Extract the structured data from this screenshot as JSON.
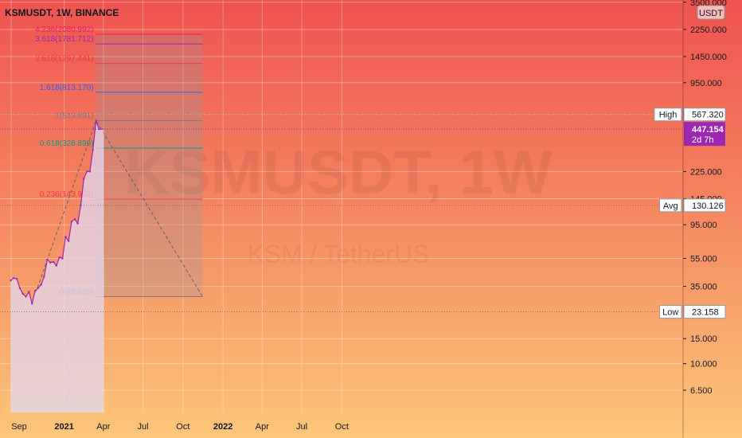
{
  "chart_data": {
    "type": "line",
    "title": "KSMUSDT, 1W, BINANCE",
    "watermark": {
      "symbol": "KSMUSDT, 1W",
      "description": "KSM / TetherUS"
    },
    "currency_badge": "USDT",
    "scale": "log",
    "ylim": [
      5.6,
      4200
    ],
    "x_ticks": [
      "Sep",
      "2021",
      "Apr",
      "Jul",
      "Oct",
      "2022",
      "Apr",
      "Jul",
      "Oct"
    ],
    "y_ticks": [
      "3500.000",
      "2250.000",
      "1450.000",
      "950.000",
      "567.320",
      "225.000",
      "145.000",
      "95.000",
      "55.000",
      "35.000",
      "15.000",
      "10.000",
      "6.500"
    ],
    "series": [
      {
        "x": [
          "2020-08-31",
          "2020-09-07",
          "2020-09-14",
          "2020-09-21",
          "2020-09-28",
          "2020-10-05",
          "2020-10-12",
          "2020-10-19",
          "2020-10-26",
          "2020-11-02",
          "2020-11-09",
          "2020-11-16",
          "2020-11-23",
          "2020-11-30",
          "2020-12-07",
          "2020-12-14",
          "2020-12-21",
          "2020-12-28",
          "2021-01-04",
          "2021-01-11",
          "2021-01-18",
          "2021-01-25",
          "2021-02-01",
          "2021-02-08",
          "2021-02-15",
          "2021-02-22",
          "2021-03-01",
          "2021-03-08",
          "2021-03-15",
          "2021-03-22"
        ],
        "values": [
          38.5,
          40.0,
          39.5,
          34.0,
          31.0,
          29.6,
          32.0,
          26.5,
          32.5,
          34.0,
          36.0,
          41.0,
          54.0,
          51.5,
          52.0,
          49.0,
          56.0,
          55.0,
          78.0,
          73.0,
          100.0,
          104.0,
          97.0,
          130.0,
          200.0,
          225.0,
          225.0,
          320.0,
          513.891,
          447.154
        ]
      }
    ],
    "fib_levels": [
      {
        "label": "4.236(2080.992)",
        "ratio": 4.236,
        "value": 2080.992,
        "color": "#e91e63"
      },
      {
        "label": "3.618(1781.712)",
        "ratio": 3.618,
        "value": 1781.712,
        "color": "#9c27b0"
      },
      {
        "label": "2.618(1297.441)",
        "ratio": 2.618,
        "value": 1297.441,
        "color": "#f23645"
      },
      {
        "label": "1.618(813.170)",
        "ratio": 1.618,
        "value": 813.17,
        "color": "#2962ff"
      },
      {
        "label": "1(513.891)",
        "ratio": 1,
        "value": 513.891,
        "color": "#787b86"
      },
      {
        "label": "0.618(328.899)",
        "ratio": 0.618,
        "value": 328.899,
        "color": "#089981"
      },
      {
        "label": "0.236(143.908)",
        "ratio": 0.236,
        "value": 143.908,
        "color": "#f23645"
      },
      {
        "label": "0(29.620)",
        "ratio": 0,
        "value": 29.62,
        "color": "#787b86"
      }
    ],
    "trend_line": {
      "from": {
        "date": "2020-10-19",
        "value": 26.5
      },
      "via": {
        "date": "2021-03-15",
        "value": 513.891
      },
      "to": {
        "date": "2021-11-15",
        "value": 29.62
      }
    },
    "markers": [
      {
        "label": "High",
        "value_text": "567.320",
        "value": 567.32
      },
      {
        "label": "Avg",
        "value_text": "130.126",
        "value": 130.126
      },
      {
        "label": "Low",
        "value_text": "23.158",
        "value": 23.158
      }
    ],
    "last_price": {
      "value_text": "447.154",
      "value": 447.154,
      "countdown": "2d 7h",
      "color": "#9c27b0"
    },
    "colors": {
      "gradient_top": "#ef5350",
      "gradient_bottom": "#fdc77a",
      "line": "#9c27b0",
      "area_fill": "#d1c4e9"
    },
    "grid": true
  }
}
